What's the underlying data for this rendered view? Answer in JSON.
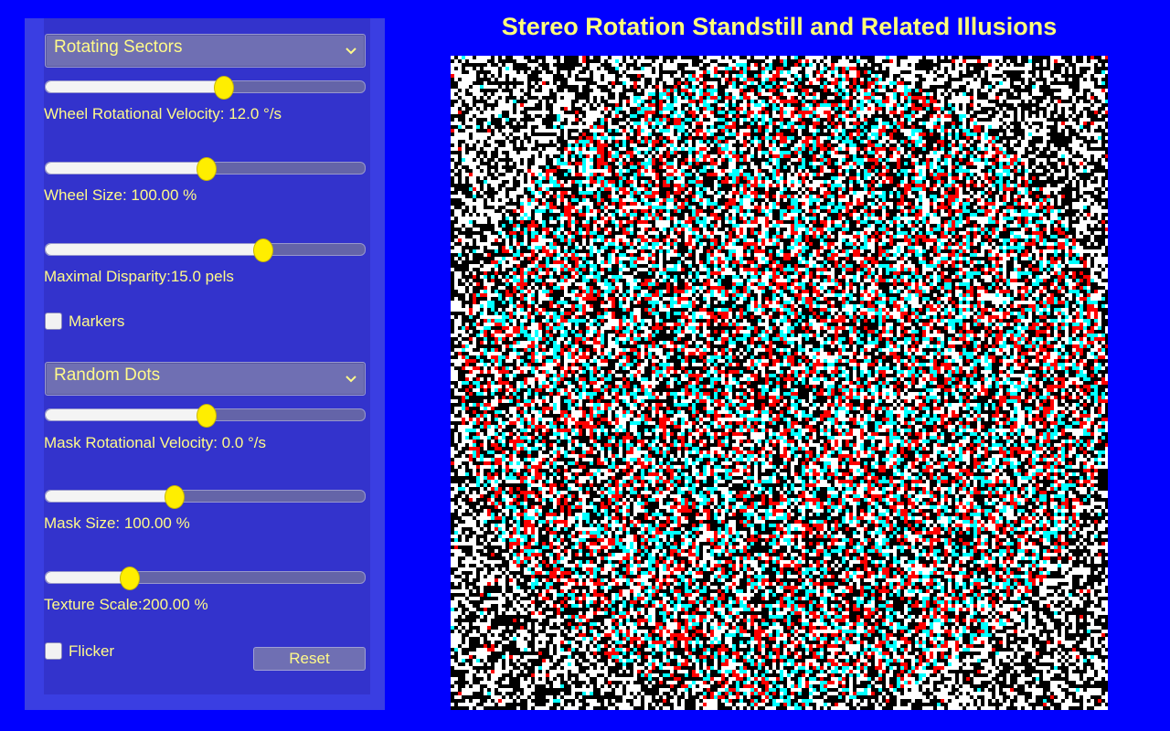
{
  "title": "Stereo Rotation Standstill and Related Illusions",
  "colors": {
    "background": "#0000ff",
    "panel": "#3333cc",
    "accent": "#fffa8a",
    "thumb": "#ffee00"
  },
  "wheel": {
    "pattern_select": {
      "selected": "Rotating Sectors"
    },
    "velocity": {
      "label": "Wheel Rotational Velocity: 12.0 °/s",
      "fraction": 0.555
    },
    "size": {
      "label": "Wheel Size: 100.00 %",
      "fraction": 0.5
    },
    "disparity": {
      "label": "Maximal Disparity:15.0 pels",
      "fraction": 0.68
    },
    "markers": {
      "label": "Markers",
      "checked": false
    }
  },
  "mask": {
    "pattern_select": {
      "selected": "Random Dots"
    },
    "velocity": {
      "label": "Mask Rotational Velocity: 0.0 °/s",
      "fraction": 0.5
    },
    "size": {
      "label": "Mask Size: 100.00 %",
      "fraction": 0.4
    },
    "texture_scale": {
      "label": "Texture Scale:200.00 %",
      "fraction": 0.26
    },
    "flicker": {
      "label": "Flicker",
      "checked": false
    }
  },
  "reset_button": {
    "label": "Reset"
  },
  "stimulus": {
    "type": "red-cyan anaglyph random dot stereogram",
    "dot_colors": [
      "#000000",
      "#ffffff",
      "#ff0000",
      "#00ffff"
    ]
  }
}
